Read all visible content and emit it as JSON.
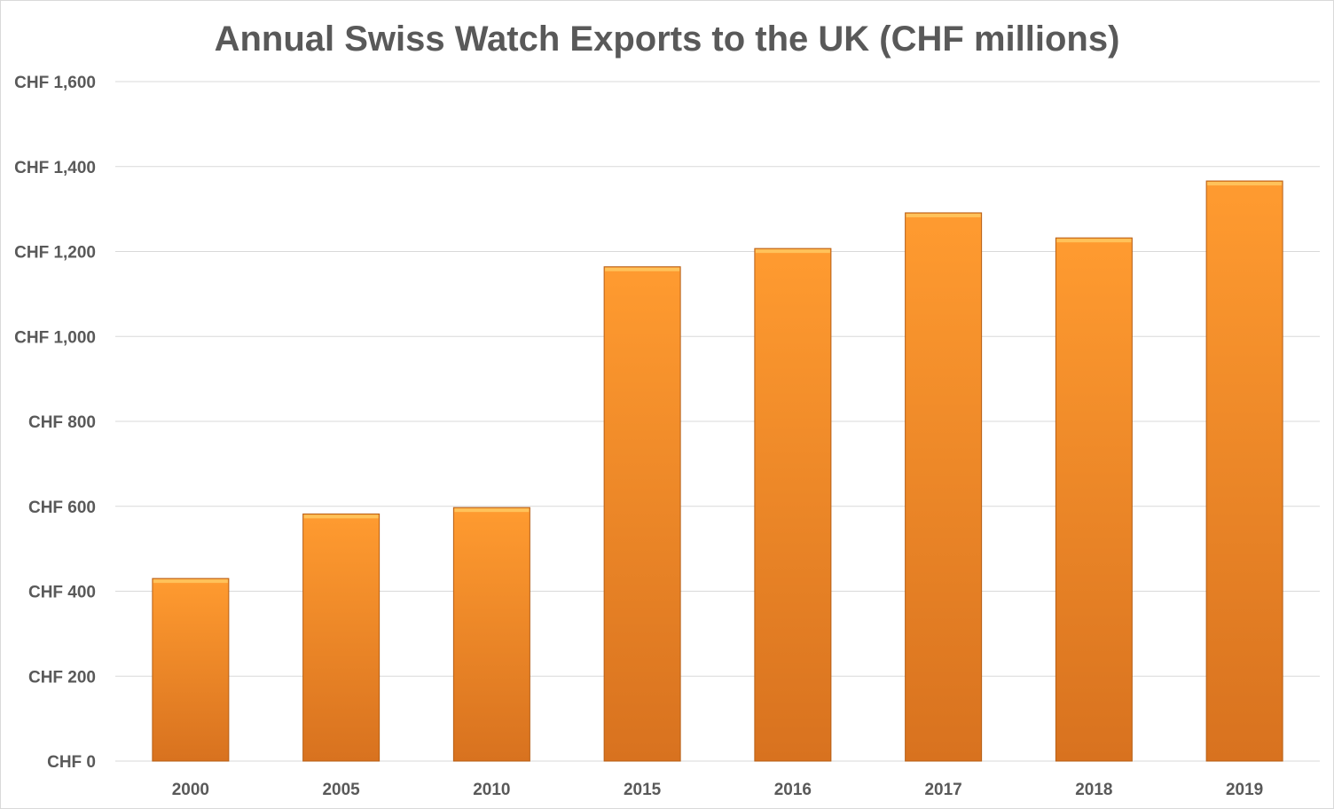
{
  "chart_data": {
    "type": "bar",
    "title": "Annual Swiss Watch Exports to the UK (CHF millions)",
    "xlabel": "",
    "ylabel": "",
    "categories": [
      "2000",
      "2005",
      "2010",
      "2015",
      "2016",
      "2017",
      "2018",
      "2019"
    ],
    "values": [
      430,
      582,
      597,
      1164,
      1207,
      1291,
      1232,
      1366
    ],
    "ylim": [
      0,
      1600
    ],
    "yticks": [
      0,
      200,
      400,
      600,
      800,
      1000,
      1200,
      1400,
      1600
    ],
    "ytick_labels": [
      "CHF 0",
      "CHF 200",
      "CHF 400",
      "CHF 600",
      "CHF 800",
      "CHF 1,000",
      "CHF 1,200",
      "CHF 1,400",
      "CHF 1,600"
    ],
    "grid": true,
    "legend": "none",
    "colors": {
      "bar_top": "#ff9b30",
      "bar_bottom": "#d8721f",
      "grid": "#d9d9d9",
      "text": "#595959"
    }
  }
}
